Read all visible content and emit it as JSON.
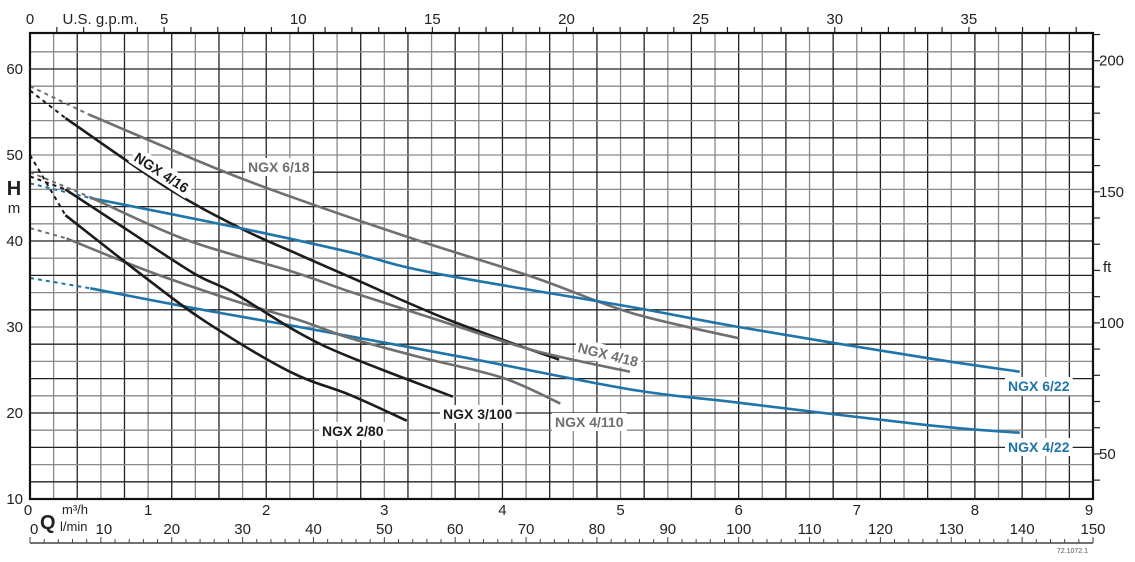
{
  "chart_data": {
    "type": "line",
    "title": "",
    "x_axis": {
      "symbol": "Q",
      "unit": "m³/h",
      "range": [
        0,
        9
      ],
      "ticks": [
        0,
        1,
        2,
        3,
        4,
        5,
        6,
        7,
        8,
        9
      ]
    },
    "x_axis_secondary": {
      "unit": "l/min",
      "range": [
        0,
        150
      ],
      "ticks": [
        0,
        10,
        20,
        30,
        40,
        50,
        60,
        70,
        80,
        90,
        100,
        110,
        120,
        130,
        140,
        150
      ]
    },
    "x_axis_top": {
      "unit": "U.S. g.p.m.",
      "ticks": [
        0,
        5,
        10,
        15,
        20,
        25,
        30,
        35
      ]
    },
    "y_axis": {
      "symbol": "H",
      "unit": "m",
      "range": [
        10,
        64
      ],
      "ticks": [
        10,
        20,
        30,
        40,
        50,
        60
      ]
    },
    "y_axis_right": {
      "unit": "ft",
      "ticks": [
        50,
        100,
        150,
        200
      ]
    },
    "grid": true,
    "colors": {
      "black": "#1c1c1c",
      "grey": "#6f6f6f",
      "blue": "#1f74aa"
    },
    "series": [
      {
        "name": "NGX 6/18",
        "color": "#6f6f6f",
        "points": [
          [
            0,
            58
          ],
          [
            0.5,
            54.7
          ],
          [
            1.6,
            48.3
          ],
          [
            2.3,
            44.7
          ],
          [
            3.3,
            40
          ],
          [
            4.26,
            35.8
          ],
          [
            5.1,
            31.6
          ],
          [
            6.0,
            28.7
          ]
        ]
      },
      {
        "name": "NGX 4/16",
        "color": "#1c1c1c",
        "points": [
          [
            0,
            57.5
          ],
          [
            0.3,
            54.3
          ],
          [
            1.16,
            46.2
          ],
          [
            1.78,
            41.5
          ],
          [
            2.28,
            38.4
          ],
          [
            2.71,
            35.8
          ],
          [
            3.55,
            30.8
          ],
          [
            4.48,
            26.2
          ]
        ]
      },
      {
        "name": "NGX 6/22",
        "color": "#1f74aa",
        "points": [
          [
            0,
            46.7
          ],
          [
            0.51,
            45
          ],
          [
            1.78,
            41.5
          ],
          [
            2.71,
            38.7
          ],
          [
            3.41,
            36.3
          ],
          [
            5.1,
            32.3
          ],
          [
            6.0,
            30
          ],
          [
            7.59,
            26.4
          ],
          [
            8.38,
            24.8
          ]
        ]
      },
      {
        "name": "NGX 4/18",
        "color": "#6f6f6f",
        "points": [
          [
            0,
            48
          ],
          [
            0.51,
            45.1
          ],
          [
            1.33,
            40.1
          ],
          [
            2.23,
            36.4
          ],
          [
            2.71,
            34.1
          ],
          [
            3.41,
            31
          ],
          [
            4.26,
            27.3
          ],
          [
            5.08,
            24.8
          ]
        ]
      },
      {
        "name": "NGX 4/22",
        "color": "#1f74aa",
        "points": [
          [
            0,
            35.7
          ],
          [
            0.51,
            34.5
          ],
          [
            1.38,
            32.2
          ],
          [
            2.2,
            30.2
          ],
          [
            3.7,
            26.4
          ],
          [
            5.1,
            22.7
          ],
          [
            6.0,
            21.2
          ],
          [
            7.59,
            18.6
          ],
          [
            8.38,
            17.7
          ]
        ]
      },
      {
        "name": "NGX 4/110",
        "color": "#6f6f6f",
        "points": [
          [
            0,
            41.5
          ],
          [
            0.31,
            40.3
          ],
          [
            1.0,
            36.5
          ],
          [
            1.72,
            33.1
          ],
          [
            2.3,
            30.7
          ],
          [
            2.71,
            28.7
          ],
          [
            3.3,
            26.5
          ],
          [
            4.0,
            24.1
          ],
          [
            4.49,
            21.1
          ]
        ]
      },
      {
        "name": "NGX 3/100",
        "color": "#1c1c1c",
        "points": [
          [
            0,
            47.5
          ],
          [
            0.3,
            46
          ],
          [
            0.8,
            41.5
          ],
          [
            1.38,
            36.3
          ],
          [
            1.72,
            34
          ],
          [
            2.28,
            29.3
          ],
          [
            2.71,
            26.5
          ],
          [
            3.58,
            21.9
          ]
        ]
      },
      {
        "name": "NGX 2/80",
        "color": "#1c1c1c",
        "points": [
          [
            0,
            50
          ],
          [
            0.3,
            43
          ],
          [
            1.0,
            35.5
          ],
          [
            1.5,
            30.5
          ],
          [
            2.2,
            24.8
          ],
          [
            2.71,
            22.1
          ],
          [
            3.19,
            19.1
          ]
        ]
      }
    ],
    "code": "72.1072.1"
  }
}
